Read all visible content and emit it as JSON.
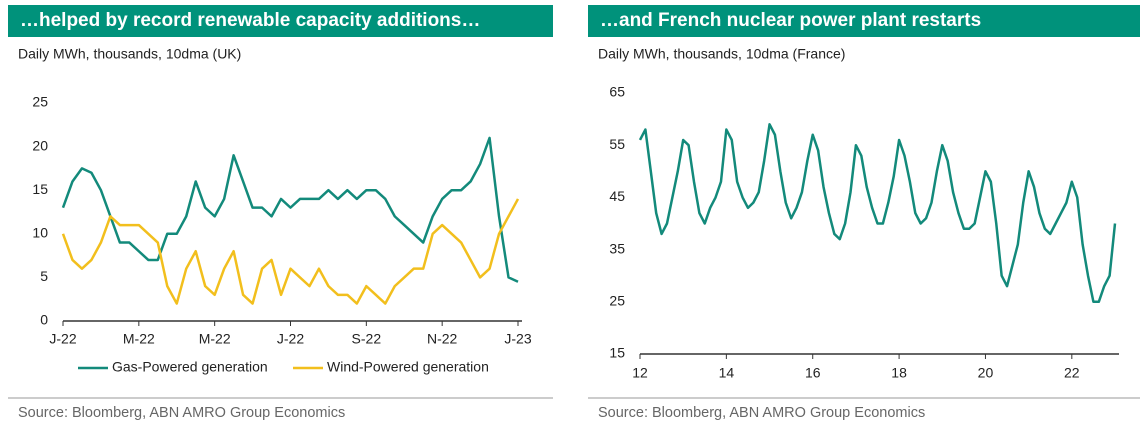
{
  "chart_data": [
    {
      "type": "line",
      "title": "…helped by record renewable capacity additions…",
      "subtitle": "Daily MWh, thousands, 10dma (UK)",
      "source": "Source: Bloomberg, ABN AMRO Group Economics",
      "categories": [
        "J-22",
        null,
        null,
        null,
        null,
        null,
        null,
        null,
        "M-22",
        null,
        null,
        null,
        null,
        null,
        null,
        null,
        "M-22",
        null,
        null,
        null,
        null,
        null,
        null,
        null,
        "J-22",
        null,
        null,
        null,
        null,
        null,
        null,
        null,
        "S-22",
        null,
        null,
        null,
        null,
        null,
        null,
        null,
        "N-22",
        null,
        null,
        null,
        null,
        null,
        null,
        null,
        "J-23"
      ],
      "series": [
        {
          "name": "Gas-Powered generation",
          "color": "#138a7b",
          "values": [
            13,
            16,
            17.5,
            17,
            15,
            12,
            9,
            9,
            8,
            7,
            7,
            10,
            10,
            12,
            16,
            13,
            12,
            14,
            19,
            16,
            13,
            13,
            12,
            14,
            13,
            14,
            14,
            14,
            15,
            14,
            15,
            14,
            15,
            15,
            14,
            12,
            11,
            10,
            9,
            12,
            14,
            15,
            15,
            16,
            18,
            21,
            12,
            5,
            4.5
          ]
        },
        {
          "name": "Wind-Powered generation",
          "color": "#f2bf1d",
          "values": [
            10,
            7,
            6,
            7,
            9,
            12,
            11,
            11,
            11,
            10,
            9,
            4,
            2,
            6,
            8,
            4,
            3,
            6,
            8,
            3,
            2,
            6,
            7,
            3,
            6,
            5,
            4,
            6,
            4,
            3,
            3,
            2,
            4,
            3,
            2,
            4,
            5,
            6,
            6,
            10,
            11,
            10,
            9,
            7,
            5,
            6,
            10,
            12,
            14
          ]
        }
      ],
      "ylim": [
        0,
        25
      ],
      "yticks": [
        0,
        5,
        10,
        15,
        20,
        25
      ],
      "legend": "bottom"
    },
    {
      "type": "line",
      "title": "…and French nuclear power plant restarts",
      "subtitle": "Daily MWh, thousands, 10dma (France)",
      "source": "Source: Bloomberg, ABN AMRO Group Economics",
      "color": "#138a7b",
      "x": [
        12,
        12.125,
        12.25,
        12.375,
        12.5,
        12.625,
        12.75,
        12.875,
        13,
        13.125,
        13.25,
        13.375,
        13.5,
        13.625,
        13.75,
        13.875,
        14,
        14.125,
        14.25,
        14.375,
        14.5,
        14.625,
        14.75,
        14.875,
        15,
        15.125,
        15.25,
        15.375,
        15.5,
        15.625,
        15.75,
        15.875,
        16,
        16.125,
        16.25,
        16.375,
        16.5,
        16.625,
        16.75,
        16.875,
        17,
        17.125,
        17.25,
        17.375,
        17.5,
        17.625,
        17.75,
        17.875,
        18,
        18.125,
        18.25,
        18.375,
        18.5,
        18.625,
        18.75,
        18.875,
        19,
        19.125,
        19.25,
        19.375,
        19.5,
        19.625,
        19.75,
        19.875,
        20,
        20.125,
        20.25,
        20.375,
        20.5,
        20.625,
        20.75,
        20.875,
        21,
        21.125,
        21.25,
        21.375,
        21.5,
        21.625,
        21.75,
        21.875,
        22,
        22.125,
        22.25,
        22.375,
        22.5,
        22.625,
        22.75,
        22.875,
        23
      ],
      "values": [
        56,
        58,
        50,
        42,
        38,
        40,
        45,
        50,
        56,
        55,
        48,
        42,
        40,
        43,
        45,
        48,
        58,
        56,
        48,
        45,
        43,
        44,
        46,
        52,
        59,
        57,
        50,
        44,
        41,
        43,
        46,
        52,
        57,
        54,
        47,
        42,
        38,
        37,
        40,
        46,
        55,
        53,
        47,
        43,
        40,
        40,
        44,
        49,
        56,
        53,
        48,
        42,
        40,
        41,
        44,
        50,
        55,
        52,
        46,
        42,
        39,
        39,
        40,
        45,
        50,
        48,
        40,
        30,
        28,
        32,
        36,
        44,
        50,
        47,
        42,
        39,
        38,
        40,
        42,
        44,
        48,
        45,
        36,
        30,
        25,
        25,
        28,
        30,
        40
      ],
      "xlim": [
        12,
        23
      ],
      "xticks": [
        12,
        14,
        16,
        18,
        20,
        22
      ],
      "ylim": [
        15,
        65
      ],
      "yticks": [
        15,
        25,
        35,
        45,
        55,
        65
      ]
    }
  ]
}
